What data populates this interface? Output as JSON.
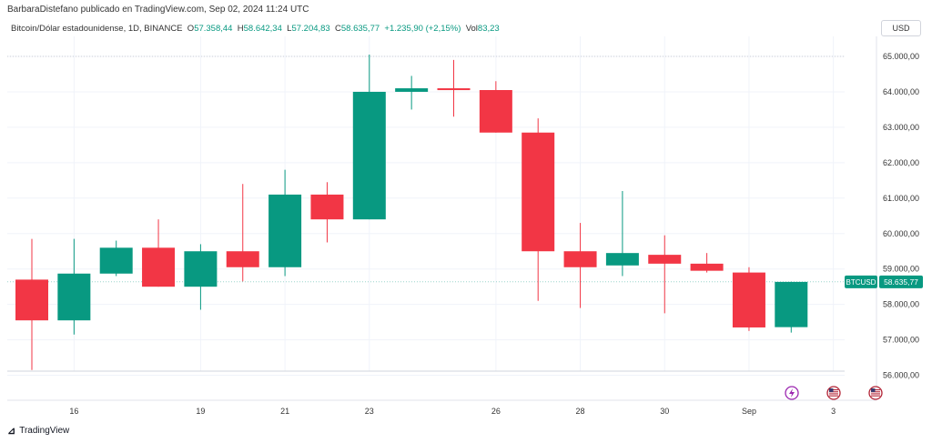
{
  "header": {
    "publisher_line": "BarbaraDistefano publicado en TradingView.com, Sep 02, 2024 11:24 UTC"
  },
  "ohlc_bar": {
    "symbol": "Bitcoin/Dólar estadounidense, 1D, BINANCE",
    "open_label": "O",
    "open": "57.358,44",
    "high_label": "H",
    "high": "58.642,34",
    "low_label": "L",
    "low": "57.204,83",
    "close_label": "C",
    "close": "58.635,77",
    "change": "+1.235,90 (+2,15%)",
    "vol_label": "Vol",
    "vol": "83,23"
  },
  "currency_button": "USD",
  "last_price_tag": {
    "ticker": "BTCUSD",
    "price": "58.635,77"
  },
  "branding": {
    "logo_text": "TradingView"
  },
  "colors": {
    "up": "#089981",
    "down": "#f23645",
    "grid": "#f0f3fa",
    "axis_text": "#333333"
  },
  "icons": [
    "lightning-event-icon",
    "us-flag-event-icon",
    "us-flag-event-icon-2"
  ],
  "chart_data": {
    "type": "candlestick",
    "title": "Bitcoin/Dólar estadounidense, 1D, BINANCE",
    "ylim": [
      55750,
      65400
    ],
    "y_ticks": [
      56000,
      57000,
      58000,
      59000,
      60000,
      61000,
      62000,
      63000,
      64000,
      65000
    ],
    "y_tick_labels": [
      "56.000,00",
      "57.000,00",
      "58.000,00",
      "59.000,00",
      "60.000,00",
      "61.000,00",
      "62.000,00",
      "63.000,00",
      "64.000,00",
      "65.000,00"
    ],
    "x_ticks": [
      {
        "label": "16",
        "index": 1
      },
      {
        "label": "19",
        "index": 4
      },
      {
        "label": "21",
        "index": 6
      },
      {
        "label": "23",
        "index": 8
      },
      {
        "label": "26",
        "index": 11
      },
      {
        "label": "28",
        "index": 13
      },
      {
        "label": "30",
        "index": 15
      },
      {
        "label": "Sep",
        "index": 17
      },
      {
        "label": "3",
        "index": 19
      }
    ],
    "candles": [
      {
        "date": "Aug 15",
        "open": 58700,
        "high": 59850,
        "low": 56150,
        "close": 57550
      },
      {
        "date": "Aug 16",
        "open": 57550,
        "high": 59850,
        "low": 57150,
        "close": 58870
      },
      {
        "date": "Aug 17",
        "open": 58870,
        "high": 59800,
        "low": 58800,
        "close": 59600
      },
      {
        "date": "Aug 18",
        "open": 59600,
        "high": 60400,
        "low": 58500,
        "close": 58500
      },
      {
        "date": "Aug 19",
        "open": 58500,
        "high": 59700,
        "low": 57850,
        "close": 59500
      },
      {
        "date": "Aug 20",
        "open": 59500,
        "high": 61400,
        "low": 58650,
        "close": 59050
      },
      {
        "date": "Aug 21",
        "open": 59050,
        "high": 61800,
        "low": 58800,
        "close": 61100
      },
      {
        "date": "Aug 22",
        "open": 61100,
        "high": 61450,
        "low": 59750,
        "close": 60400
      },
      {
        "date": "Aug 23",
        "open": 60400,
        "high": 65050,
        "low": 60400,
        "close": 64000
      },
      {
        "date": "Aug 24",
        "open": 64000,
        "high": 64450,
        "low": 63500,
        "close": 64100
      },
      {
        "date": "Aug 25",
        "open": 64100,
        "high": 64900,
        "low": 63300,
        "close": 64050
      },
      {
        "date": "Aug 26",
        "open": 64050,
        "high": 64300,
        "low": 62850,
        "close": 62850
      },
      {
        "date": "Aug 27",
        "open": 62850,
        "high": 63250,
        "low": 58100,
        "close": 59500
      },
      {
        "date": "Aug 28",
        "open": 59500,
        "high": 60300,
        "low": 57900,
        "close": 59050
      },
      {
        "date": "Aug 29",
        "open": 59100,
        "high": 61200,
        "low": 58800,
        "close": 59450
      },
      {
        "date": "Aug 30",
        "open": 59400,
        "high": 59950,
        "low": 57750,
        "close": 59150
      },
      {
        "date": "Aug 31",
        "open": 59150,
        "high": 59450,
        "low": 58900,
        "close": 58950
      },
      {
        "date": "Sep 01",
        "open": 58900,
        "high": 59050,
        "low": 57250,
        "close": 57350
      },
      {
        "date": "Sep 02",
        "open": 57358.44,
        "high": 58642.34,
        "low": 57204.83,
        "close": 58635.77
      }
    ],
    "last_price": 58635.77
  }
}
